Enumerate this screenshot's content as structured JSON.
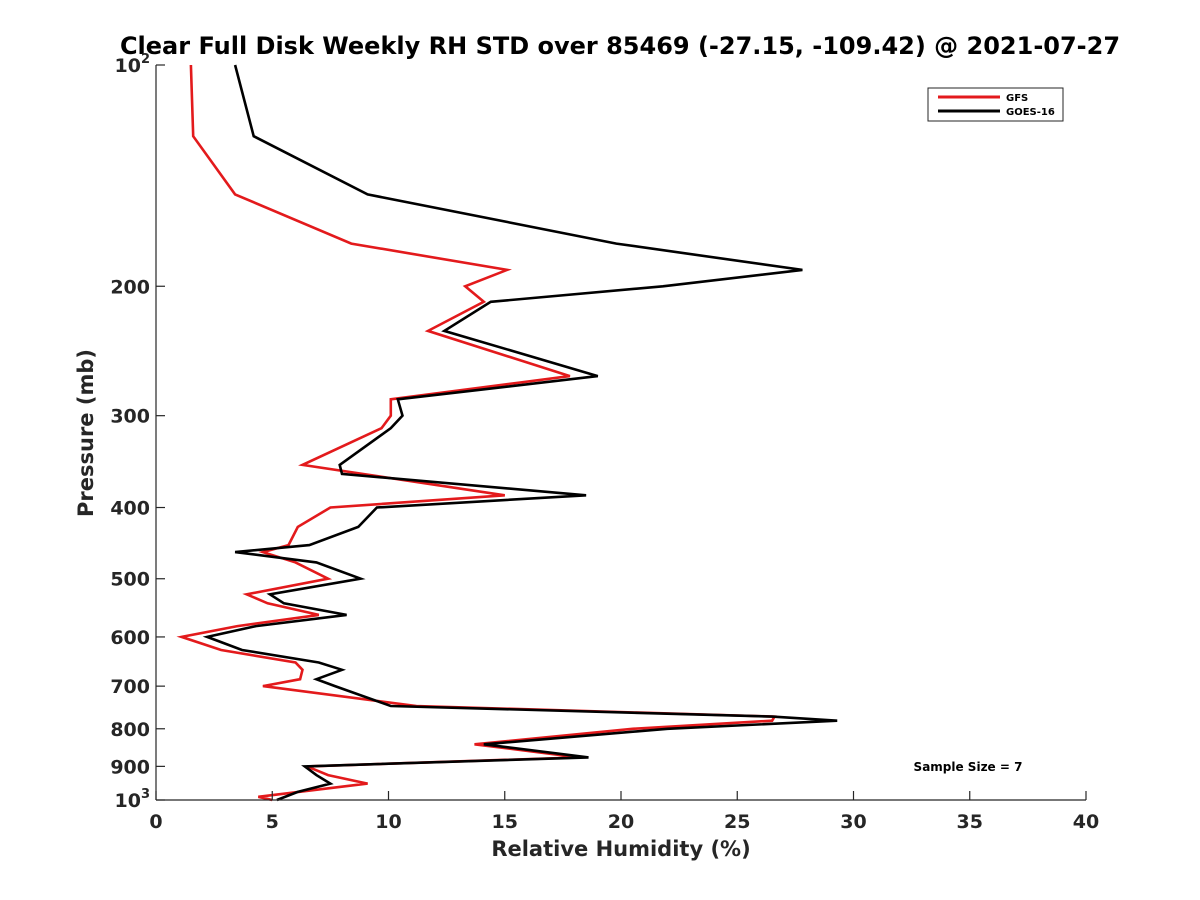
{
  "chart_data": {
    "type": "line",
    "title": "Clear Full Disk Weekly RH STD over 85469 (-27.15, -109.42) @ 2021-07-27",
    "xlabel": "Relative Humidity (%)",
    "ylabel": "Pressure (mb)",
    "xlim": [
      0,
      40
    ],
    "ylim": [
      100,
      1000
    ],
    "y_scale": "log",
    "y_reversed": true,
    "x_ticks": [
      "0",
      "5",
      "10",
      "15",
      "20",
      "25",
      "30",
      "35",
      "40"
    ],
    "y_ticks": [
      {
        "value": 100,
        "base": "10",
        "exp": "2"
      },
      {
        "value": 200,
        "label": "200"
      },
      {
        "value": 300,
        "label": "300"
      },
      {
        "value": 400,
        "label": "400"
      },
      {
        "value": 500,
        "label": "500"
      },
      {
        "value": 600,
        "label": "600"
      },
      {
        "value": 700,
        "label": "700"
      },
      {
        "value": 800,
        "label": "800"
      },
      {
        "value": 900,
        "label": "900"
      },
      {
        "value": 1000,
        "base": "10",
        "exp": "3"
      }
    ],
    "legend_position": "top-right",
    "annotation": "Sample Size = 7",
    "series": [
      {
        "name": "GFS",
        "color": "#e31a1c",
        "points": [
          [
            1.5,
            100
          ],
          [
            1.6,
            125
          ],
          [
            3.4,
            150
          ],
          [
            8.4,
            175
          ],
          [
            15.1,
            190
          ],
          [
            13.3,
            200
          ],
          [
            14.1,
            210
          ],
          [
            11.7,
            230
          ],
          [
            17.8,
            265
          ],
          [
            10.1,
            285
          ],
          [
            10.1,
            300
          ],
          [
            9.7,
            312
          ],
          [
            6.3,
            350
          ],
          [
            15.0,
            385
          ],
          [
            7.5,
            400
          ],
          [
            6.1,
            425
          ],
          [
            5.7,
            450
          ],
          [
            4.6,
            460
          ],
          [
            6.0,
            475
          ],
          [
            7.4,
            500
          ],
          [
            3.9,
            525
          ],
          [
            4.8,
            540
          ],
          [
            7.0,
            560
          ],
          [
            3.5,
            580
          ],
          [
            1.1,
            600
          ],
          [
            2.8,
            625
          ],
          [
            6.0,
            650
          ],
          [
            6.3,
            665
          ],
          [
            6.2,
            685
          ],
          [
            4.6,
            700
          ],
          [
            11.2,
            745
          ],
          [
            26.6,
            770
          ],
          [
            26.5,
            780
          ],
          [
            20.5,
            800
          ],
          [
            13.7,
            840
          ],
          [
            18.2,
            875
          ],
          [
            6.5,
            900
          ],
          [
            7.4,
            925
          ],
          [
            9.1,
            950
          ],
          [
            4.4,
            990
          ],
          [
            5.0,
            1000
          ]
        ]
      },
      {
        "name": "GOES-16",
        "color": "#000000",
        "points": [
          [
            3.4,
            100
          ],
          [
            4.2,
            125
          ],
          [
            9.1,
            150
          ],
          [
            19.8,
            175
          ],
          [
            27.8,
            190
          ],
          [
            21.8,
            200
          ],
          [
            14.4,
            210
          ],
          [
            12.4,
            230
          ],
          [
            19.0,
            265
          ],
          [
            10.4,
            285
          ],
          [
            10.6,
            300
          ],
          [
            10.1,
            312
          ],
          [
            7.9,
            350
          ],
          [
            8.0,
            360
          ],
          [
            18.5,
            385
          ],
          [
            9.5,
            400
          ],
          [
            8.7,
            425
          ],
          [
            6.6,
            450
          ],
          [
            3.4,
            460
          ],
          [
            6.9,
            475
          ],
          [
            8.8,
            500
          ],
          [
            4.9,
            525
          ],
          [
            5.5,
            540
          ],
          [
            8.2,
            560
          ],
          [
            4.3,
            580
          ],
          [
            2.2,
            600
          ],
          [
            3.7,
            625
          ],
          [
            7.0,
            650
          ],
          [
            8.0,
            665
          ],
          [
            6.9,
            685
          ],
          [
            7.7,
            700
          ],
          [
            10.1,
            745
          ],
          [
            26.5,
            770
          ],
          [
            29.3,
            780
          ],
          [
            22.0,
            800
          ],
          [
            14.1,
            840
          ],
          [
            18.6,
            875
          ],
          [
            6.4,
            900
          ],
          [
            6.9,
            925
          ],
          [
            7.5,
            950
          ],
          [
            6.1,
            975
          ],
          [
            5.2,
            1000
          ]
        ]
      }
    ]
  }
}
